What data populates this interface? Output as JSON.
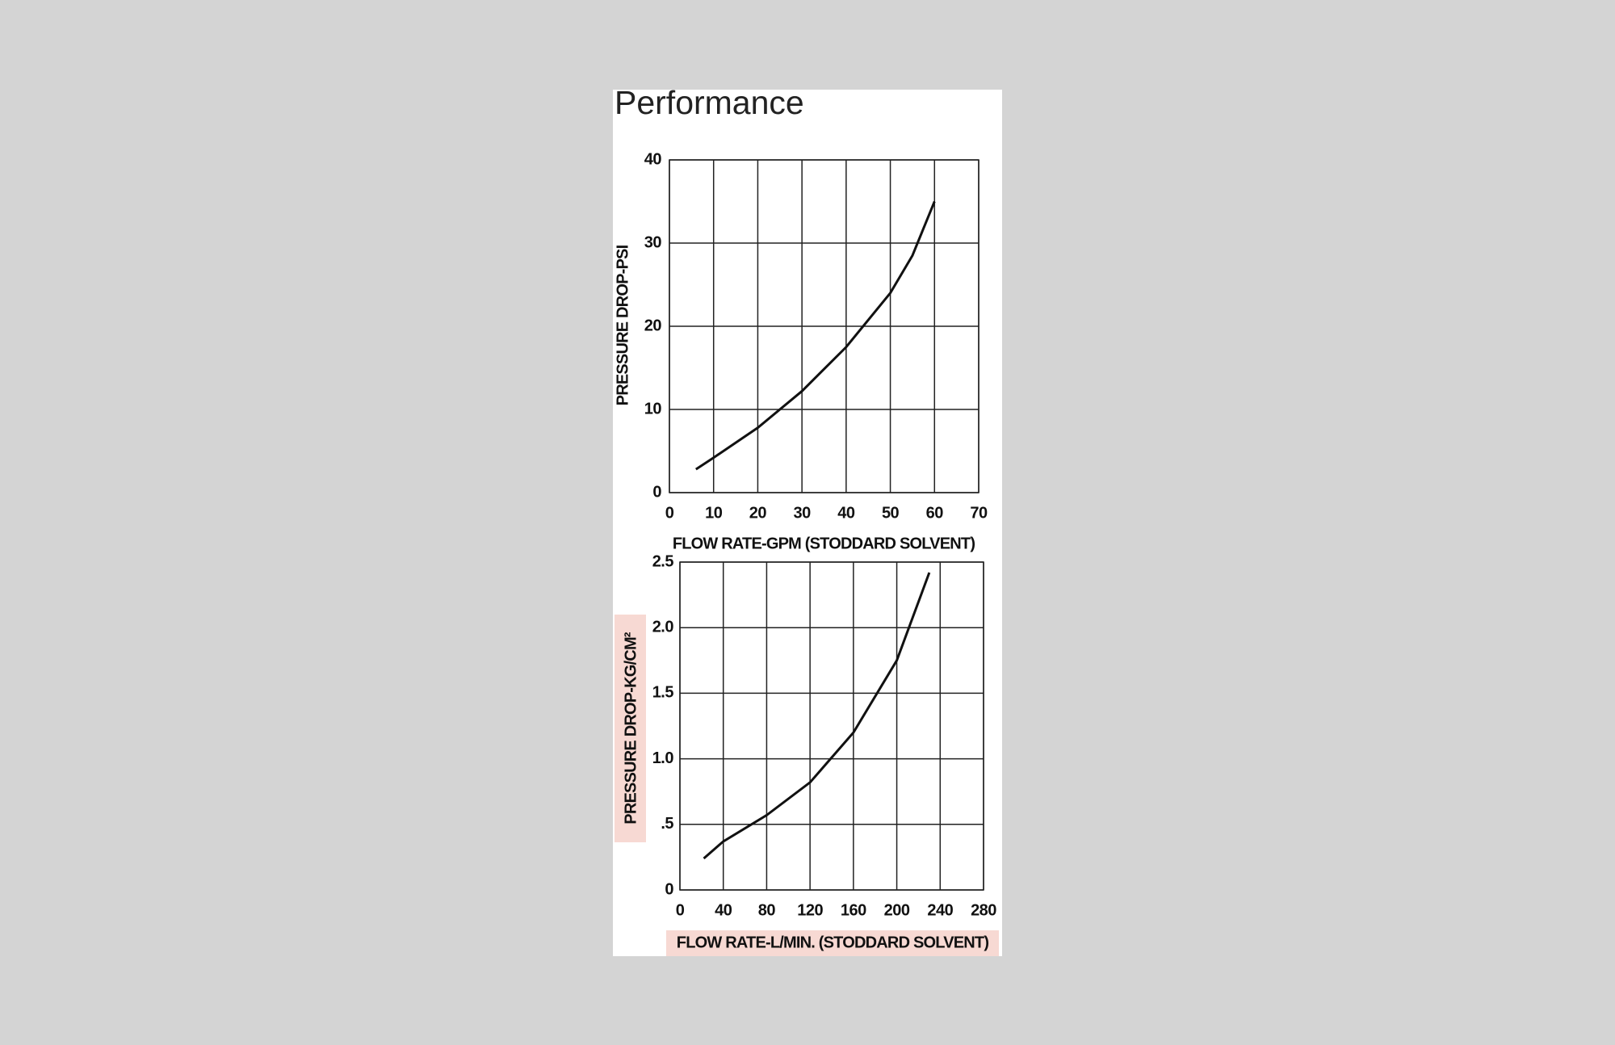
{
  "title": "Performance",
  "chart_data": [
    {
      "type": "line",
      "x_label": "FLOW RATE-GPM (STODDARD SOLVENT)",
      "y_label": "PRESSURE DROP-PSI",
      "x": [
        6,
        10,
        20,
        30,
        40,
        50,
        55,
        60
      ],
      "values": [
        2.8,
        4.2,
        7.8,
        12.2,
        17.5,
        24,
        28.5,
        35
      ],
      "color": "#111111",
      "xlim": [
        0,
        70
      ],
      "xticks": [
        0,
        10,
        20,
        30,
        40,
        50,
        60,
        70
      ],
      "ylim": [
        0,
        40
      ],
      "yticks": [
        0,
        10,
        20,
        30,
        40
      ],
      "grid": true
    },
    {
      "type": "line",
      "x_label": "FLOW RATE-L/MIN. (STODDARD SOLVENT)",
      "y_label": "PRESSURE DROP-KG/CM²",
      "x": [
        22,
        40,
        80,
        120,
        160,
        200,
        230
      ],
      "values": [
        0.24,
        0.37,
        0.57,
        0.82,
        1.2,
        1.75,
        2.42
      ],
      "color": "#111111",
      "xlim": [
        0,
        280
      ],
      "xticks": [
        0,
        40,
        80,
        120,
        160,
        200,
        240,
        280
      ],
      "ylim": [
        0,
        2.5
      ],
      "yticks": [
        0,
        {
          "value": 0.5,
          "label": ".5"
        },
        {
          "value": 1,
          "label": "1.0"
        },
        {
          "value": 1.5,
          "label": "1.5"
        },
        {
          "value": 2,
          "label": "2.0"
        },
        2.5
      ],
      "grid": true
    }
  ]
}
